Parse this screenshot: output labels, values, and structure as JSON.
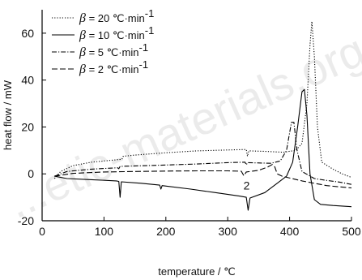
{
  "chart_data": {
    "type": "line",
    "xlabel": "temperature / ℃",
    "ylabel": "heat flow / mW",
    "xlim": [
      0,
      500
    ],
    "ylim": [
      -20,
      70
    ],
    "xticks": [
      0,
      100,
      200,
      300,
      400,
      500
    ],
    "yticks": [
      -20,
      0,
      20,
      40,
      60
    ],
    "grid": false,
    "legend_position": "top-left",
    "annotation": "2",
    "watermark": "...etic-materials.org.c...",
    "series": [
      {
        "name": "β = 20 ℃·min⁻¹",
        "symbol": "β",
        "legend_rest": " = 20 ℃·min",
        "legend_sup": "-1",
        "dash": "1.2,2",
        "points": [
          [
            20,
            -2
          ],
          [
            30,
            1
          ],
          [
            50,
            3.5
          ],
          [
            80,
            5
          ],
          [
            120,
            6
          ],
          [
            129,
            6.2
          ],
          [
            131,
            7.5
          ],
          [
            150,
            8
          ],
          [
            200,
            9
          ],
          [
            250,
            9.8
          ],
          [
            300,
            10.2
          ],
          [
            330,
            10.4
          ],
          [
            332,
            7.5
          ],
          [
            334,
            9.8
          ],
          [
            360,
            9.6
          ],
          [
            390,
            9.2
          ],
          [
            410,
            10
          ],
          [
            420,
            13
          ],
          [
            428,
            30
          ],
          [
            433,
            55
          ],
          [
            436,
            65
          ],
          [
            440,
            50
          ],
          [
            445,
            20
          ],
          [
            452,
            5
          ],
          [
            470,
            2
          ],
          [
            485,
            0
          ],
          [
            500,
            -1.5
          ]
        ]
      },
      {
        "name": "β = 10 ℃·min⁻¹",
        "symbol": "β",
        "legend_rest": " = 10 ℃·min",
        "legend_sup": "-1",
        "dash": "",
        "points": [
          [
            20,
            -1
          ],
          [
            40,
            -2
          ],
          [
            80,
            -2.5
          ],
          [
            120,
            -3
          ],
          [
            124,
            -3.2
          ],
          [
            126,
            -10
          ],
          [
            128,
            -3.4
          ],
          [
            160,
            -4
          ],
          [
            190,
            -4.8
          ],
          [
            192,
            -6.5
          ],
          [
            194,
            -5
          ],
          [
            240,
            -6.5
          ],
          [
            280,
            -8
          ],
          [
            320,
            -9.5
          ],
          [
            330,
            -10
          ],
          [
            333,
            -15.5
          ],
          [
            336,
            -10.3
          ],
          [
            360,
            -8
          ],
          [
            380,
            -4
          ],
          [
            395,
            -1
          ],
          [
            405,
            5
          ],
          [
            413,
            20
          ],
          [
            420,
            35
          ],
          [
            424,
            36
          ],
          [
            428,
            25
          ],
          [
            433,
            0
          ],
          [
            440,
            -11
          ],
          [
            450,
            -13
          ],
          [
            470,
            -13.5
          ],
          [
            500,
            -14
          ]
        ]
      },
      {
        "name": "β = 5 ℃·min⁻¹",
        "symbol": "β",
        "legend_rest": " = 5  ℃·min",
        "legend_sup": "-1",
        "dash": "6,2,1.2,2",
        "points": [
          [
            20,
            -1
          ],
          [
            40,
            1
          ],
          [
            80,
            2
          ],
          [
            122,
            2.6
          ],
          [
            124,
            2.2
          ],
          [
            126,
            3.2
          ],
          [
            180,
            3.6
          ],
          [
            250,
            4.2
          ],
          [
            300,
            4.8
          ],
          [
            328,
            5
          ],
          [
            330,
            3.8
          ],
          [
            332,
            4.8
          ],
          [
            370,
            4.5
          ],
          [
            385,
            5.5
          ],
          [
            395,
            10
          ],
          [
            403,
            22
          ],
          [
            407,
            22
          ],
          [
            412,
            10
          ],
          [
            420,
            1
          ],
          [
            440,
            -2
          ],
          [
            460,
            -2.8
          ],
          [
            480,
            -3.5
          ],
          [
            500,
            -4.5
          ]
        ]
      },
      {
        "name": "β = 2 ℃·min⁻¹",
        "symbol": "β",
        "legend_rest": " = 2  ℃·min",
        "legend_sup": "-1",
        "dash": "7,3",
        "points": [
          [
            20,
            -1
          ],
          [
            50,
            0.2
          ],
          [
            100,
            0.8
          ],
          [
            150,
            1
          ],
          [
            200,
            1.2
          ],
          [
            250,
            1.3
          ],
          [
            300,
            1.3
          ],
          [
            322,
            1.1
          ],
          [
            326,
            -0.8
          ],
          [
            330,
            0.8
          ],
          [
            350,
            1.5
          ],
          [
            365,
            3
          ],
          [
            372,
            4
          ],
          [
            376,
            3
          ],
          [
            380,
            0
          ],
          [
            388,
            -1
          ],
          [
            420,
            -3
          ],
          [
            460,
            -5
          ],
          [
            500,
            -6
          ]
        ]
      }
    ]
  }
}
